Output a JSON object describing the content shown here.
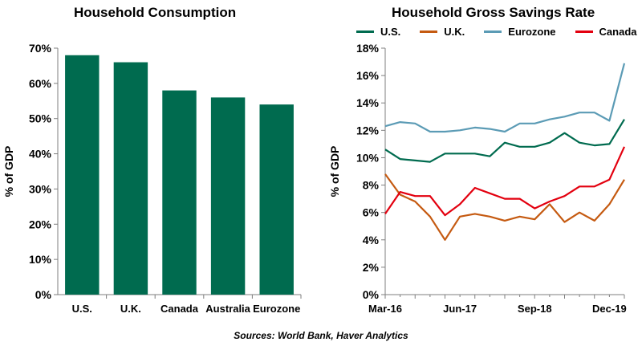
{
  "chart_data": [
    {
      "type": "bar",
      "title": "Household Consumption",
      "ylabel": "% of GDP",
      "xlabel": "",
      "categories": [
        "U.S.",
        "U.K.",
        "Canada",
        "Australia",
        "Eurozone"
      ],
      "values": [
        68,
        66,
        58,
        56,
        54
      ],
      "ylim": [
        0,
        70
      ],
      "yticks": [
        "0%",
        "10%",
        "20%",
        "30%",
        "40%",
        "50%",
        "60%",
        "70%"
      ],
      "bar_color": "#006b4f",
      "grid": false
    },
    {
      "type": "line",
      "title": "Household Gross Savings Rate",
      "ylabel": "% of GDP",
      "xlabel": "",
      "x": [
        "Mar-16",
        "Jun-16",
        "Sep-16",
        "Dec-16",
        "Mar-17",
        "Jun-17",
        "Sep-17",
        "Dec-17",
        "Mar-18",
        "Jun-18",
        "Sep-18",
        "Dec-18",
        "Mar-19",
        "Jun-19",
        "Sep-19",
        "Dec-19",
        "Mar-20"
      ],
      "xtick_labels": [
        "Mar-16",
        "Jun-17",
        "Sep-18",
        "Dec-19"
      ],
      "ylim": [
        0,
        18
      ],
      "yticks": [
        "0%",
        "2%",
        "4%",
        "6%",
        "8%",
        "10%",
        "12%",
        "14%",
        "16%",
        "18%"
      ],
      "grid": false,
      "legend_position": "top",
      "series": [
        {
          "name": "U.S.",
          "color": "#006b4f",
          "values": [
            10.6,
            9.9,
            9.8,
            9.7,
            10.3,
            10.3,
            10.3,
            10.1,
            11.1,
            10.8,
            10.8,
            11.1,
            11.8,
            11.1,
            10.9,
            11.0,
            12.8
          ]
        },
        {
          "name": "U.K.",
          "color": "#c55a11",
          "values": [
            8.8,
            7.3,
            6.8,
            5.7,
            4.0,
            5.7,
            5.9,
            5.7,
            5.4,
            5.7,
            5.5,
            6.6,
            5.3,
            6.0,
            5.4,
            6.6,
            8.4
          ]
        },
        {
          "name": "Eurozone",
          "color": "#5b9bb5",
          "values": [
            12.3,
            12.6,
            12.5,
            11.9,
            11.9,
            12.0,
            12.2,
            12.1,
            11.9,
            12.5,
            12.5,
            12.8,
            13.0,
            13.3,
            13.3,
            12.7,
            16.9
          ]
        },
        {
          "name": "Canada",
          "color": "#e3000f",
          "values": [
            5.9,
            7.5,
            7.2,
            7.2,
            5.8,
            6.6,
            7.8,
            7.4,
            7.0,
            7.0,
            6.3,
            6.8,
            7.2,
            7.9,
            7.9,
            8.4,
            10.8
          ]
        }
      ]
    }
  ],
  "source_note": "Sources: World Bank, Haver Analytics"
}
